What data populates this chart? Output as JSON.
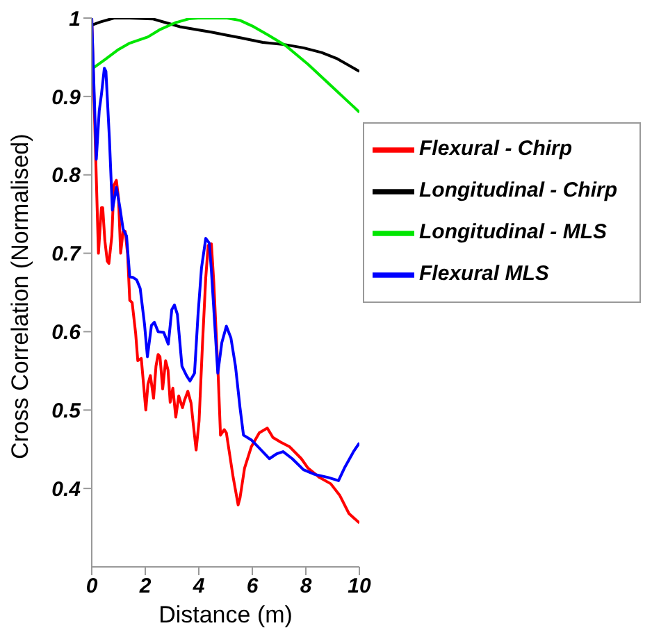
{
  "chart_data": {
    "type": "line",
    "xlabel": "Distance (m)",
    "ylabel": "Cross Correlation (Normalised)",
    "xlim": [
      0,
      10
    ],
    "ylim": [
      0.3,
      1
    ],
    "xticks": [
      0,
      2,
      4,
      6,
      8,
      10
    ],
    "yticks": [
      0.4,
      0.5,
      0.6,
      0.7,
      0.8,
      0.9,
      1
    ],
    "grid": false,
    "legend": "top right",
    "marker": "none",
    "line_style": "solid",
    "series": [
      {
        "name": "Flexural - Chirp",
        "color": "#ff0000",
        "x": [
          0,
          0.25,
          0.36,
          0.41,
          0.49,
          0.58,
          0.64,
          0.75,
          0.83,
          0.92,
          1.0,
          1.08,
          1.17,
          1.25,
          1.34,
          1.42,
          1.51,
          1.64,
          1.72,
          1.85,
          2.02,
          2.1,
          2.19,
          2.31,
          2.4,
          2.48,
          2.55,
          2.65,
          2.76,
          2.85,
          2.93,
          3.03,
          3.14,
          3.25,
          3.39,
          3.46,
          3.59,
          3.71,
          3.8,
          3.9,
          4.01,
          4.14,
          4.26,
          4.35,
          4.47,
          4.56,
          4.73,
          4.81,
          4.95,
          5.03,
          5.28,
          5.47,
          5.54,
          5.71,
          5.96,
          6.26,
          6.56,
          6.77,
          7.06,
          7.4,
          7.83,
          8.08,
          8.51,
          8.93,
          9.27,
          9.61,
          10
        ],
        "values": [
          1.0,
          0.7,
          0.758,
          0.758,
          0.716,
          0.69,
          0.687,
          0.722,
          0.787,
          0.793,
          0.77,
          0.7,
          0.728,
          0.728,
          0.699,
          0.64,
          0.637,
          0.598,
          0.563,
          0.566,
          0.5,
          0.533,
          0.544,
          0.515,
          0.556,
          0.571,
          0.568,
          0.527,
          0.563,
          0.551,
          0.51,
          0.528,
          0.491,
          0.518,
          0.503,
          0.512,
          0.524,
          0.509,
          0.48,
          0.449,
          0.486,
          0.586,
          0.669,
          0.71,
          0.712,
          0.663,
          0.539,
          0.468,
          0.475,
          0.471,
          0.415,
          0.379,
          0.388,
          0.426,
          0.453,
          0.471,
          0.477,
          0.465,
          0.459,
          0.453,
          0.438,
          0.426,
          0.414,
          0.406,
          0.391,
          0.368,
          0.356
        ]
      },
      {
        "name": "Longitudinal - Chirp",
        "color": "#000000",
        "x": [
          0,
          0.32,
          0.83,
          1.42,
          2.27,
          2.78,
          3.29,
          3.97,
          4.47,
          5.06,
          5.54,
          6.39,
          7.24,
          7.91,
          8.59,
          9.18,
          10
        ],
        "values": [
          0.991,
          0.995,
          1.0,
          1.0,
          0.999,
          0.994,
          0.989,
          0.985,
          0.982,
          0.978,
          0.975,
          0.969,
          0.966,
          0.962,
          0.956,
          0.948,
          0.932
        ]
      },
      {
        "name": "Longitudinal - MLS",
        "color": "#00e600",
        "x": [
          0,
          0.49,
          1.0,
          1.42,
          2.1,
          2.53,
          3.12,
          3.63,
          3.97,
          5.06,
          5.54,
          6.05,
          6.56,
          7.24,
          8.08,
          8.93,
          10
        ],
        "values": [
          0.935,
          0.947,
          0.96,
          0.968,
          0.976,
          0.985,
          0.994,
          0.999,
          1.0,
          1.0,
          0.997,
          0.989,
          0.979,
          0.965,
          0.941,
          0.914,
          0.88
        ]
      },
      {
        "name": "Flexural MLS",
        "color": "#0000ff",
        "x": [
          0,
          0.17,
          0.28,
          0.36,
          0.47,
          0.53,
          0.66,
          0.77,
          0.92,
          1.04,
          1.17,
          1.3,
          1.42,
          1.55,
          1.68,
          1.81,
          1.97,
          2.08,
          2.23,
          2.34,
          2.48,
          2.69,
          2.86,
          2.99,
          3.09,
          3.2,
          3.37,
          3.54,
          3.67,
          3.84,
          3.97,
          4.1,
          4.26,
          4.39,
          4.47,
          4.71,
          4.86,
          5.03,
          5.2,
          5.37,
          5.54,
          5.67,
          5.96,
          6.22,
          6.64,
          6.9,
          7.15,
          7.49,
          7.91,
          8.33,
          8.84,
          9.22,
          9.44,
          9.78,
          10
        ],
        "values": [
          1.0,
          0.82,
          0.882,
          0.902,
          0.936,
          0.932,
          0.846,
          0.755,
          0.784,
          0.761,
          0.731,
          0.722,
          0.67,
          0.669,
          0.666,
          0.655,
          0.61,
          0.568,
          0.608,
          0.612,
          0.6,
          0.599,
          0.584,
          0.628,
          0.634,
          0.622,
          0.556,
          0.544,
          0.537,
          0.547,
          0.621,
          0.681,
          0.719,
          0.713,
          0.678,
          0.547,
          0.586,
          0.607,
          0.592,
          0.556,
          0.503,
          0.468,
          0.462,
          0.453,
          0.438,
          0.444,
          0.447,
          0.438,
          0.424,
          0.418,
          0.414,
          0.41,
          0.426,
          0.447,
          0.458
        ]
      }
    ]
  }
}
